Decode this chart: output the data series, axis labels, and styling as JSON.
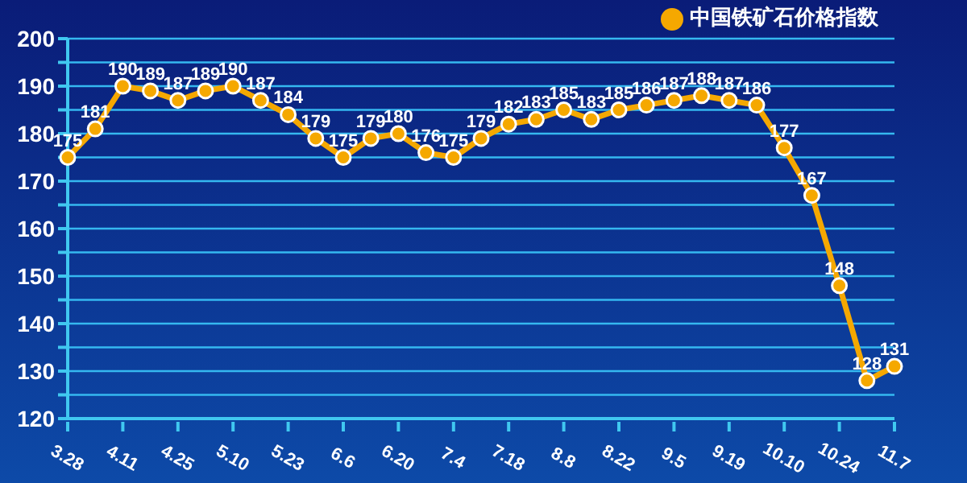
{
  "chart_data": {
    "type": "line",
    "categories": [
      "3.28",
      null,
      "4.11",
      null,
      "4.25",
      null,
      "5.10",
      null,
      "5.23",
      null,
      "6.6",
      null,
      "6.20",
      null,
      "7.4",
      null,
      "7.18",
      null,
      "8.8",
      null,
      "8.22",
      null,
      "9.5",
      null,
      "9.19",
      null,
      "10.10",
      null,
      "10.24",
      null,
      "11.7"
    ],
    "series": [
      {
        "name": "中国铁矿石价格指数",
        "color": "#f5a800",
        "values": [
          175,
          181,
          190,
          189,
          187,
          189,
          190,
          187,
          184,
          179,
          175,
          179,
          180,
          176,
          175,
          179,
          182,
          183,
          185,
          183,
          185,
          186,
          187,
          188,
          187,
          186,
          177,
          167,
          148,
          128,
          131
        ]
      }
    ],
    "ylim": [
      120,
      200
    ],
    "yticks": [
      120,
      {
        "value": 125,
        "label": null
      },
      130,
      {
        "value": 135,
        "label": null
      },
      140,
      {
        "value": 145,
        "label": null
      },
      150,
      {
        "value": 155,
        "label": null
      },
      160,
      {
        "value": 165,
        "label": null
      },
      170,
      {
        "value": 175,
        "label": null
      },
      180,
      {
        "value": 185,
        "label": null
      },
      190,
      {
        "value": 195,
        "label": null
      },
      200
    ],
    "grid": "y",
    "legend": "top right",
    "marker": "circle",
    "line_style": "solid",
    "data_labels": true
  }
}
